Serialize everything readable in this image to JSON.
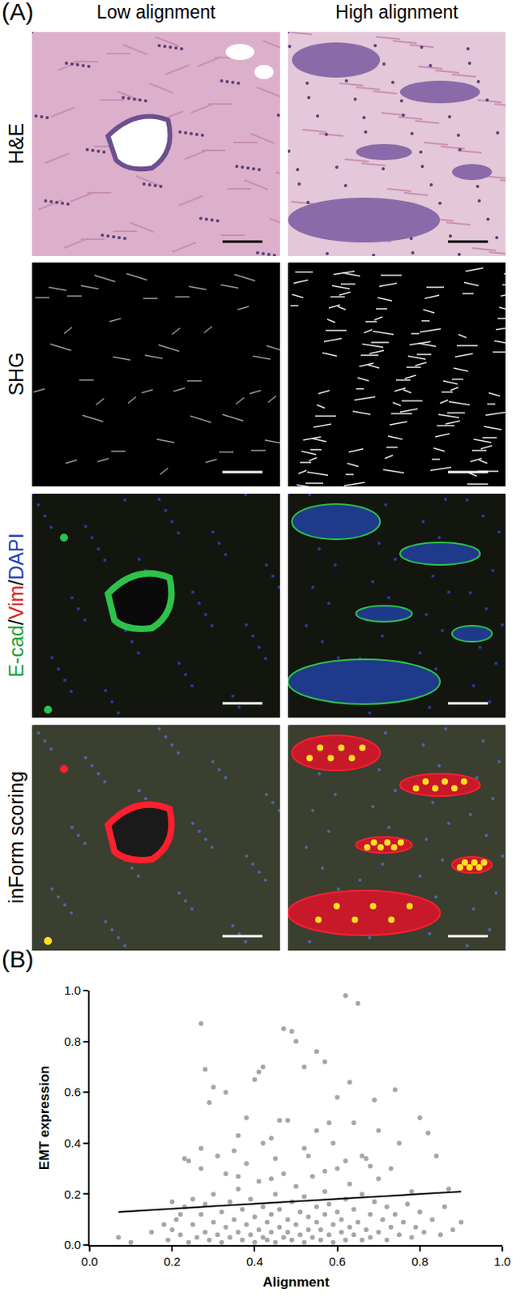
{
  "figure": {
    "panel_labels": [
      "(A)",
      "(B)"
    ],
    "columns": [
      "Low alignment",
      "High alignment"
    ],
    "rows": [
      {
        "label": [
          {
            "text": "H&E",
            "color": "#000000"
          }
        ]
      },
      {
        "label": [
          {
            "text": "SHG",
            "color": "#000000"
          }
        ]
      },
      {
        "label": [
          {
            "text": "E-cad",
            "color": "#1fa33a"
          },
          {
            "text": "/",
            "color": "#000000"
          },
          {
            "text": "Vim",
            "color": "#e0201b"
          },
          {
            "text": "/",
            "color": "#000000"
          },
          {
            "text": "DAPI",
            "color": "#1c3fbf"
          }
        ]
      },
      {
        "label": [
          {
            "text": "inForm scoring",
            "color": "#000000"
          }
        ]
      }
    ]
  },
  "chart_data": {
    "type": "scatter",
    "x_label": "Alignment",
    "y_label": "EMT expression",
    "xlim": [
      0,
      1
    ],
    "ylim": [
      0,
      1
    ],
    "xticks": [
      {
        "value": 0,
        "label": "0.0"
      },
      0.2,
      0.4,
      0.6,
      0.8,
      {
        "value": 1,
        "label": "1.0"
      }
    ],
    "yticks": [
      {
        "value": 0,
        "label": "0.0"
      },
      0.2,
      0.4,
      0.6,
      0.8,
      {
        "value": 1,
        "label": "1.0"
      }
    ],
    "grid": false,
    "series": [
      {
        "type": "scatter",
        "marker": "circle",
        "color": "#a6a6a6",
        "x": [
          0.27,
          0.62,
          0.65,
          0.47,
          0.49,
          0.42,
          0.41,
          0.28,
          0.55,
          0.57,
          0.4,
          0.5,
          0.63,
          0.74,
          0.3,
          0.29,
          0.33,
          0.52,
          0.6,
          0.69,
          0.8,
          0.82,
          0.23,
          0.24,
          0.38,
          0.46,
          0.48,
          0.36,
          0.44,
          0.58,
          0.64,
          0.55,
          0.7,
          0.75,
          0.42,
          0.27,
          0.31,
          0.35,
          0.52,
          0.59,
          0.66,
          0.67,
          0.73,
          0.84,
          0.78,
          0.87,
          0.9,
          0.07,
          0.1,
          0.15,
          0.18,
          0.2,
          0.22,
          0.19,
          0.2,
          0.21,
          0.22,
          0.23,
          0.24,
          0.25,
          0.25,
          0.26,
          0.27,
          0.28,
          0.28,
          0.29,
          0.3,
          0.3,
          0.31,
          0.32,
          0.32,
          0.33,
          0.34,
          0.34,
          0.35,
          0.36,
          0.36,
          0.37,
          0.37,
          0.38,
          0.39,
          0.39,
          0.4,
          0.4,
          0.41,
          0.41,
          0.42,
          0.42,
          0.43,
          0.43,
          0.44,
          0.44,
          0.45,
          0.45,
          0.46,
          0.46,
          0.47,
          0.47,
          0.48,
          0.48,
          0.49,
          0.49,
          0.5,
          0.5,
          0.51,
          0.51,
          0.52,
          0.52,
          0.53,
          0.53,
          0.54,
          0.54,
          0.55,
          0.55,
          0.56,
          0.56,
          0.57,
          0.57,
          0.58,
          0.58,
          0.59,
          0.59,
          0.6,
          0.6,
          0.61,
          0.61,
          0.62,
          0.62,
          0.63,
          0.63,
          0.64,
          0.64,
          0.65,
          0.66,
          0.66,
          0.67,
          0.68,
          0.68,
          0.69,
          0.7,
          0.7,
          0.71,
          0.72,
          0.72,
          0.73,
          0.74,
          0.75,
          0.76,
          0.77,
          0.78,
          0.79,
          0.8,
          0.81,
          0.83,
          0.85,
          0.86,
          0.88,
          0.27,
          0.33,
          0.38,
          0.45,
          0.53,
          0.62,
          0.68,
          0.57,
          0.44,
          0.36
        ],
        "values": [
          0.87,
          0.98,
          0.95,
          0.85,
          0.84,
          0.7,
          0.68,
          0.69,
          0.76,
          0.72,
          0.65,
          0.8,
          0.64,
          0.61,
          0.62,
          0.56,
          0.6,
          0.7,
          0.58,
          0.57,
          0.5,
          0.44,
          0.34,
          0.33,
          0.5,
          0.49,
          0.49,
          0.43,
          0.42,
          0.48,
          0.48,
          0.45,
          0.45,
          0.4,
          0.4,
          0.3,
          0.35,
          0.37,
          0.38,
          0.4,
          0.35,
          0.34,
          0.3,
          0.35,
          0.21,
          0.22,
          0.09,
          0.03,
          0.01,
          0.05,
          0.08,
          0.17,
          0.12,
          0.02,
          0.06,
          0.1,
          0.04,
          0.15,
          0.01,
          0.08,
          0.18,
          0.03,
          0.12,
          0.05,
          0.16,
          0.02,
          0.09,
          0.2,
          0.04,
          0.13,
          0.01,
          0.07,
          0.17,
          0.03,
          0.1,
          0.05,
          0.22,
          0.02,
          0.14,
          0.08,
          0.04,
          0.18,
          0.11,
          0.01,
          0.06,
          0.25,
          0.03,
          0.15,
          0.09,
          0.02,
          0.12,
          0.05,
          0.2,
          0.01,
          0.07,
          0.14,
          0.03,
          0.28,
          0.1,
          0.05,
          0.17,
          0.02,
          0.08,
          0.23,
          0.04,
          0.13,
          0.01,
          0.19,
          0.06,
          0.11,
          0.03,
          0.27,
          0.09,
          0.15,
          0.02,
          0.06,
          0.12,
          0.21,
          0.04,
          0.16,
          0.08,
          0.01,
          0.13,
          0.3,
          0.05,
          0.1,
          0.02,
          0.18,
          0.07,
          0.24,
          0.04,
          0.14,
          0.09,
          0.02,
          0.2,
          0.06,
          0.12,
          0.03,
          0.17,
          0.05,
          0.26,
          0.1,
          0.02,
          0.15,
          0.07,
          0.12,
          0.04,
          0.09,
          0.16,
          0.03,
          0.07,
          0.13,
          0.05,
          0.1,
          0.04,
          0.15,
          0.06,
          0.38,
          0.28,
          0.32,
          0.34,
          0.35,
          0.33,
          0.31,
          0.29,
          0.26,
          0.27
        ]
      },
      {
        "type": "line",
        "line_style": "solid",
        "color": "#000000",
        "x": [
          0.07,
          0.9
        ],
        "values": [
          0.13,
          0.21
        ]
      }
    ]
  }
}
